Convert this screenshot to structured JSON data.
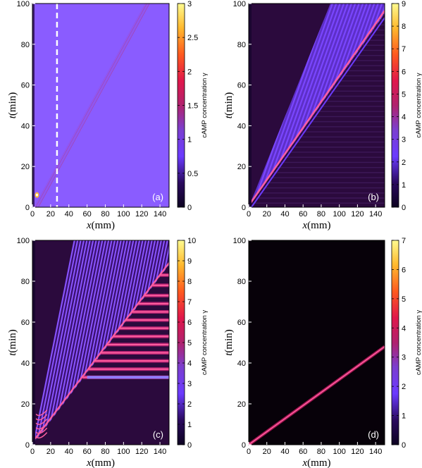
{
  "chart_data": [
    {
      "type": "heatmap",
      "panel_label": "(a)",
      "xlabel_var": "x",
      "xlabel_unit": "(mm)",
      "ylabel_var": "t",
      "ylabel_unit": "(min)",
      "xlim": [
        0,
        150
      ],
      "ylim": [
        0,
        100
      ],
      "x_ticks": [
        "0",
        "20",
        "40",
        "60",
        "80",
        "100",
        "120",
        "140"
      ],
      "y_ticks": [
        "0",
        "20",
        "40",
        "60",
        "80",
        "100"
      ],
      "colorbar_label": "cAMP concentration γ",
      "colorbar_range": [
        0,
        3
      ],
      "colorbar_ticks": [
        "0",
        "0.5",
        "1",
        "1.5",
        "2",
        "2.5",
        "3"
      ],
      "background_level": 0.9,
      "dashed_line_x": 27,
      "wave_speed_mm_per_min": 1.3,
      "description_values": {
        "wave_front_start": [
          0,
          0
        ],
        "wave_front_end": [
          125,
          100
        ]
      }
    },
    {
      "type": "heatmap",
      "panel_label": "(b)",
      "xlabel_var": "x",
      "xlabel_unit": "(mm)",
      "ylabel_var": "t",
      "ylabel_unit": "(min)",
      "xlim": [
        0,
        150
      ],
      "ylim": [
        0,
        100
      ],
      "x_ticks": [
        "0",
        "20",
        "40",
        "60",
        "80",
        "100",
        "120",
        "140"
      ],
      "y_ticks": [
        "0",
        "20",
        "40",
        "60",
        "80",
        "100"
      ],
      "colorbar_label": "cAMP concentration γ",
      "colorbar_range": [
        0,
        9
      ],
      "colorbar_ticks": [
        "0",
        "1",
        "2",
        "3",
        "4",
        "5",
        "6",
        "7",
        "8",
        "9"
      ],
      "upper_edge": [
        [
          0,
          0
        ],
        [
          90,
          100
        ]
      ],
      "lower_edge": [
        [
          0,
          0
        ],
        [
          150,
          95
        ]
      ]
    },
    {
      "type": "heatmap",
      "panel_label": "(c)",
      "xlabel_var": "x",
      "xlabel_unit": "(mm)",
      "ylabel_var": "t",
      "ylabel_unit": "(min)",
      "xlim": [
        0,
        150
      ],
      "ylim": [
        0,
        100
      ],
      "x_ticks": [
        "0",
        "20",
        "40",
        "60",
        "80",
        "100",
        "120",
        "140"
      ],
      "y_ticks": [
        "0",
        "20",
        "40",
        "60",
        "80",
        "100"
      ],
      "colorbar_label": "cAMP concentration γ",
      "colorbar_range": [
        0,
        10
      ],
      "colorbar_ticks": [
        "0",
        "1",
        "2",
        "3",
        "4",
        "5",
        "6",
        "7",
        "8",
        "9",
        "10"
      ],
      "upper_edge": [
        [
          0,
          0
        ],
        [
          45,
          100
        ]
      ],
      "lower_edge": [
        [
          0,
          0
        ],
        [
          150,
          88
        ]
      ],
      "horizontal_bands_t": [
        33,
        37,
        41,
        45,
        49,
        53,
        57,
        61,
        65,
        69,
        73,
        78,
        83
      ]
    },
    {
      "type": "heatmap",
      "panel_label": "(d)",
      "xlabel_var": "x",
      "xlabel_unit": "(mm)",
      "ylabel_var": "t",
      "ylabel_unit": "(min)",
      "xlim": [
        0,
        150
      ],
      "ylim": [
        0,
        100
      ],
      "x_ticks": [
        "0",
        "20",
        "40",
        "60",
        "80",
        "100",
        "120",
        "140"
      ],
      "y_ticks": [
        "0",
        "20",
        "40",
        "60",
        "80",
        "100"
      ],
      "colorbar_label": "cAMP concentration γ",
      "colorbar_range": [
        0,
        7
      ],
      "colorbar_ticks": [
        "0",
        "1",
        "2",
        "3",
        "4",
        "5",
        "6",
        "7"
      ],
      "single_wave": [
        [
          0,
          0
        ],
        [
          150,
          48
        ]
      ]
    }
  ]
}
